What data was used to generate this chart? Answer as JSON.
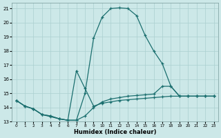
{
  "xlabel": "Humidex (Indice chaleur)",
  "background_color": "#cce8e8",
  "line_color": "#1a6e6e",
  "grid_color": "#aacfcf",
  "xlim": [
    -0.5,
    23.5
  ],
  "ylim": [
    13,
    21.4
  ],
  "yticks": [
    13,
    14,
    15,
    16,
    17,
    18,
    19,
    20,
    21
  ],
  "xticks": [
    0,
    1,
    2,
    3,
    4,
    5,
    6,
    7,
    8,
    9,
    10,
    11,
    12,
    13,
    14,
    15,
    16,
    17,
    18,
    19,
    20,
    21,
    22,
    23
  ],
  "line_main_x": [
    0,
    1,
    2,
    3,
    4,
    5,
    6,
    7,
    8,
    9,
    10,
    11,
    12,
    13,
    14,
    15,
    16,
    17,
    18,
    19,
    20,
    21,
    22,
    23
  ],
  "line_main_y": [
    14.5,
    14.1,
    13.9,
    13.5,
    13.4,
    13.2,
    13.1,
    13.1,
    15.0,
    18.9,
    20.4,
    21.0,
    21.05,
    21.0,
    20.5,
    19.1,
    18.0,
    17.1,
    15.5,
    14.8,
    14.8,
    14.8,
    14.8,
    14.8
  ],
  "line_mid_x": [
    0,
    1,
    2,
    3,
    4,
    5,
    6,
    7,
    8,
    9,
    10,
    11,
    12,
    13,
    14,
    15,
    16,
    17,
    18,
    19,
    20,
    21,
    22,
    23
  ],
  "line_mid_y": [
    14.5,
    14.1,
    13.9,
    13.5,
    13.4,
    13.2,
    13.1,
    13.1,
    13.4,
    14.0,
    14.4,
    14.6,
    14.7,
    14.8,
    14.85,
    14.9,
    14.95,
    15.5,
    15.5,
    14.8,
    14.8,
    14.8,
    14.8,
    14.8
  ],
  "line_bot_x": [
    0,
    1,
    2,
    3,
    4,
    5,
    6,
    7,
    8,
    9,
    10,
    11,
    12,
    13,
    14,
    15,
    16,
    17,
    18,
    19,
    20,
    21,
    22,
    23
  ],
  "line_bot_y": [
    14.5,
    14.1,
    13.9,
    13.5,
    13.35,
    13.2,
    13.1,
    16.6,
    15.35,
    14.1,
    14.3,
    14.4,
    14.5,
    14.55,
    14.6,
    14.65,
    14.7,
    14.75,
    14.8,
    14.8,
    14.8,
    14.8,
    14.8,
    14.8
  ]
}
